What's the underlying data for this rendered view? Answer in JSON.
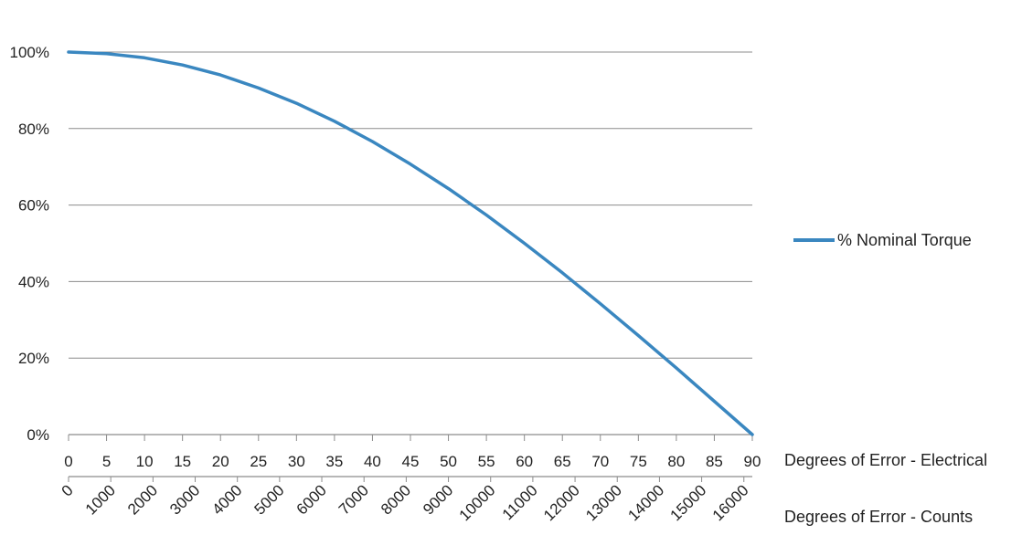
{
  "chart_data": {
    "type": "line",
    "series": [
      {
        "name": "% Nominal Torque",
        "color": "#3a87c0",
        "x": [
          0,
          5,
          10,
          15,
          20,
          25,
          30,
          35,
          40,
          45,
          50,
          55,
          60,
          65,
          70,
          75,
          80,
          85,
          90
        ],
        "values": [
          100,
          99.6,
          98.5,
          96.6,
          94.0,
          90.6,
          86.6,
          81.9,
          76.6,
          70.7,
          64.3,
          57.4,
          50.0,
          42.3,
          34.2,
          25.9,
          17.4,
          8.7,
          0
        ]
      }
    ],
    "ylim": [
      0,
      100
    ],
    "xlim": [
      0,
      90
    ],
    "y_ticks": [
      "0%",
      "20%",
      "40%",
      "60%",
      "80%",
      "100%"
    ],
    "x_ticks": [
      "0",
      "5",
      "10",
      "15",
      "20",
      "25",
      "30",
      "35",
      "40",
      "45",
      "50",
      "55",
      "60",
      "65",
      "70",
      "75",
      "80",
      "85",
      "90"
    ],
    "x2_ticks": [
      "0",
      "1000",
      "2000",
      "3000",
      "4000",
      "5000",
      "6000",
      "7000",
      "8000",
      "9000",
      "10000",
      "11000",
      "12000",
      "13000",
      "14000",
      "15000",
      "16000"
    ],
    "x2lim": [
      0,
      16200
    ],
    "xlabel": "Degrees  of Error - Electrical",
    "x2label": "Degrees  of Error - Counts",
    "grid": true,
    "legend_position": "right"
  }
}
